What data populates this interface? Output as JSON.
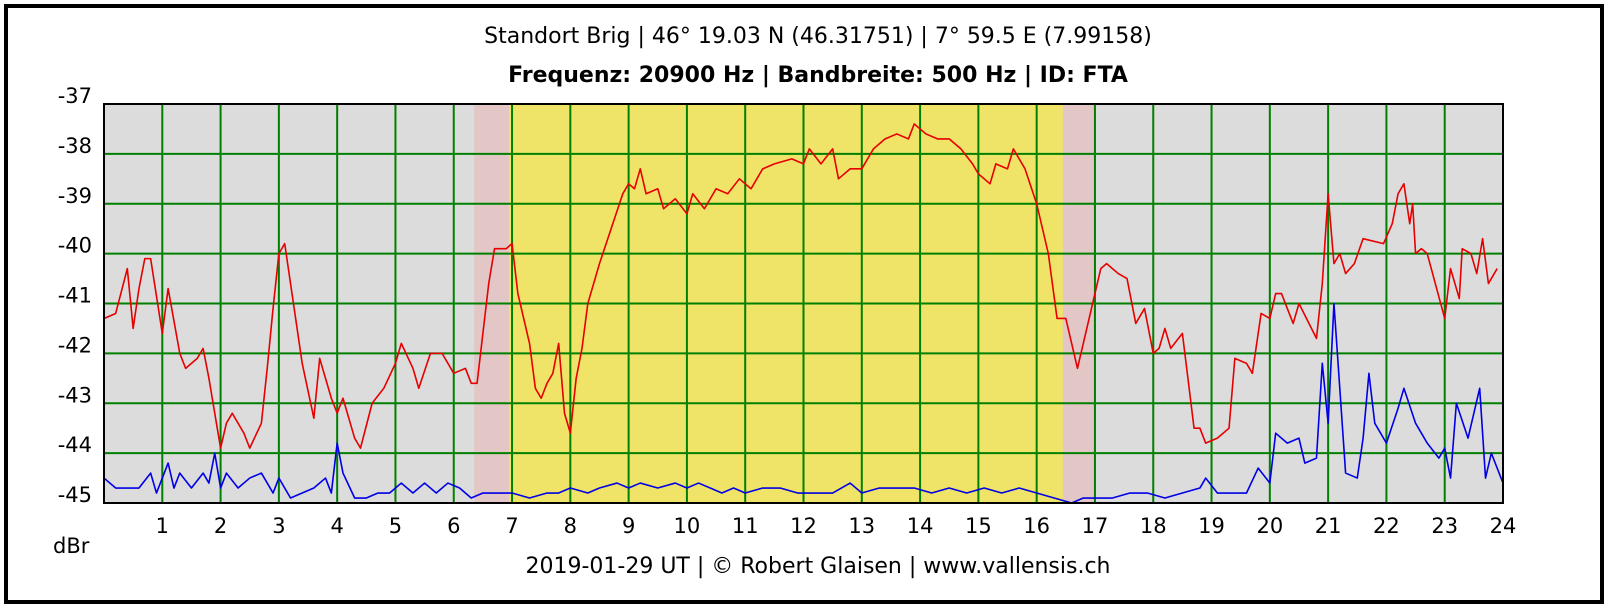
{
  "chart_data": {
    "type": "line",
    "title": "Standort Brig | 46° 19.03 N (46.31751) | 7° 59.5 E (7.99158)",
    "subtitle": "Frequenz: 20900 Hz | Bandbreite: 500 Hz | ID: FTA",
    "caption": "2019-01-29 UT | © Robert Glaisen | www.vallensis.ch",
    "y_label": "dBr",
    "xlim": [
      0,
      24
    ],
    "xticks": [
      1,
      2,
      3,
      4,
      5,
      6,
      7,
      8,
      9,
      10,
      11,
      12,
      13,
      14,
      15,
      16,
      17,
      18,
      19,
      20,
      21,
      22,
      23,
      24
    ],
    "ylim": [
      -45,
      -37
    ],
    "yticks": [
      -37,
      -38,
      -39,
      -40,
      -41,
      -42,
      -43,
      -44,
      -45
    ],
    "grid": true,
    "grid_color": "#008000",
    "background": "#dcdcdc",
    "bands": [
      {
        "from": 6.35,
        "to": 6.95,
        "color": "#e3c6c6"
      },
      {
        "from": 6.95,
        "to": 16.45,
        "color": "#f0e468"
      },
      {
        "from": 16.45,
        "to": 17.0,
        "color": "#e3c6c6"
      }
    ],
    "series": [
      {
        "color": "#e60000",
        "x": [
          0,
          0.2,
          0.4,
          0.5,
          0.6,
          0.7,
          0.8,
          1.0,
          1.1,
          1.3,
          1.4,
          1.6,
          1.7,
          1.8,
          2.0,
          2.1,
          2.2,
          2.4,
          2.5,
          2.7,
          2.8,
          2.9,
          3.0,
          3.1,
          3.2,
          3.4,
          3.6,
          3.7,
          3.9,
          4.0,
          4.1,
          4.3,
          4.4,
          4.6,
          4.8,
          5.0,
          5.1,
          5.3,
          5.4,
          5.6,
          5.8,
          6.0,
          6.2,
          6.3,
          6.4,
          6.5,
          6.6,
          6.7,
          6.9,
          7.0,
          7.1,
          7.3,
          7.4,
          7.5,
          7.6,
          7.7,
          7.8,
          7.9,
          8.0,
          8.1,
          8.2,
          8.3,
          8.5,
          8.7,
          8.9,
          9.0,
          9.1,
          9.2,
          9.3,
          9.5,
          9.6,
          9.8,
          10.0,
          10.1,
          10.3,
          10.5,
          10.7,
          10.9,
          11.1,
          11.3,
          11.5,
          11.8,
          12.0,
          12.1,
          12.3,
          12.5,
          12.6,
          12.8,
          13.0,
          13.2,
          13.4,
          13.6,
          13.8,
          13.9,
          14.1,
          14.3,
          14.5,
          14.7,
          14.9,
          15.0,
          15.2,
          15.3,
          15.5,
          15.6,
          15.8,
          16.0,
          16.2,
          16.35,
          16.5,
          16.7,
          16.9,
          17.1,
          17.2,
          17.4,
          17.55,
          17.7,
          17.85,
          18.0,
          18.1,
          18.2,
          18.3,
          18.5,
          18.7,
          18.8,
          18.9,
          19.1,
          19.3,
          19.4,
          19.6,
          19.7,
          19.85,
          20.0,
          20.1,
          20.2,
          20.4,
          20.5,
          20.8,
          20.9,
          21.0,
          21.1,
          21.2,
          21.3,
          21.45,
          21.6,
          21.95,
          22.1,
          22.2,
          22.3,
          22.4,
          22.45,
          22.5,
          22.6,
          22.7,
          23.0,
          23.1,
          23.25,
          23.3,
          23.45,
          23.55,
          23.65,
          23.75,
          23.9
        ],
        "values": [
          -41.3,
          -41.2,
          -40.3,
          -41.5,
          -40.7,
          -40.1,
          -40.1,
          -41.6,
          -40.7,
          -42.0,
          -42.3,
          -42.1,
          -41.9,
          -42.5,
          -43.9,
          -43.4,
          -43.2,
          -43.6,
          -43.9,
          -43.4,
          -42.3,
          -41.1,
          -40.0,
          -39.8,
          -40.6,
          -42.2,
          -43.3,
          -42.1,
          -42.9,
          -43.2,
          -42.9,
          -43.7,
          -43.9,
          -43.0,
          -42.7,
          -42.2,
          -41.8,
          -42.3,
          -42.7,
          -42.0,
          -42.0,
          -42.4,
          -42.3,
          -42.6,
          -42.6,
          -41.6,
          -40.6,
          -39.9,
          -39.9,
          -39.8,
          -40.8,
          -41.8,
          -42.7,
          -42.9,
          -42.6,
          -42.4,
          -41.8,
          -43.2,
          -43.6,
          -42.5,
          -41.9,
          -41.0,
          -40.2,
          -39.5,
          -38.8,
          -38.6,
          -38.7,
          -38.3,
          -38.8,
          -38.7,
          -39.1,
          -38.9,
          -39.2,
          -38.8,
          -39.1,
          -38.7,
          -38.8,
          -38.5,
          -38.7,
          -38.3,
          -38.2,
          -38.1,
          -38.2,
          -37.9,
          -38.2,
          -37.9,
          -38.5,
          -38.3,
          -38.3,
          -37.9,
          -37.7,
          -37.6,
          -37.7,
          -37.4,
          -37.6,
          -37.7,
          -37.7,
          -37.9,
          -38.2,
          -38.4,
          -38.6,
          -38.2,
          -38.3,
          -37.9,
          -38.3,
          -39.0,
          -40.0,
          -41.3,
          -41.3,
          -42.3,
          -41.3,
          -40.3,
          -40.2,
          -40.4,
          -40.5,
          -41.4,
          -41.1,
          -42.0,
          -41.9,
          -41.5,
          -41.9,
          -41.6,
          -43.5,
          -43.5,
          -43.8,
          -43.7,
          -43.5,
          -42.1,
          -42.2,
          -42.4,
          -41.2,
          -41.3,
          -40.8,
          -40.8,
          -41.4,
          -41.0,
          -41.7,
          -40.6,
          -38.8,
          -40.2,
          -40.0,
          -40.4,
          -40.2,
          -39.7,
          -39.8,
          -39.4,
          -38.8,
          -38.6,
          -39.4,
          -39.0,
          -40.0,
          -39.9,
          -40.0,
          -41.3,
          -40.3,
          -40.9,
          -39.9,
          -40.0,
          -40.4,
          -39.7,
          -40.6,
          -40.3
        ]
      },
      {
        "color": "#0000e6",
        "x": [
          0,
          0.2,
          0.4,
          0.6,
          0.8,
          0.9,
          1.0,
          1.1,
          1.2,
          1.3,
          1.5,
          1.7,
          1.8,
          1.9,
          2.0,
          2.1,
          2.3,
          2.5,
          2.7,
          2.9,
          3.0,
          3.2,
          3.4,
          3.6,
          3.8,
          3.9,
          4.0,
          4.1,
          4.3,
          4.5,
          4.7,
          4.9,
          5.1,
          5.3,
          5.5,
          5.7,
          5.9,
          6.1,
          6.3,
          6.5,
          6.8,
          7.0,
          7.3,
          7.6,
          7.8,
          8.0,
          8.3,
          8.5,
          8.8,
          9.0,
          9.2,
          9.5,
          9.8,
          10.0,
          10.2,
          10.4,
          10.6,
          10.8,
          11.0,
          11.3,
          11.6,
          11.9,
          12.2,
          12.5,
          12.8,
          13.0,
          13.3,
          13.6,
          13.9,
          14.2,
          14.5,
          14.8,
          15.1,
          15.4,
          15.7,
          16.0,
          16.3,
          16.6,
          16.8,
          17.0,
          17.3,
          17.6,
          17.9,
          18.2,
          18.5,
          18.8,
          18.9,
          19.1,
          19.4,
          19.6,
          19.8,
          20.0,
          20.1,
          20.3,
          20.5,
          20.6,
          20.8,
          20.9,
          21.0,
          21.1,
          21.3,
          21.5,
          21.6,
          21.7,
          21.8,
          22.0,
          22.2,
          22.3,
          22.5,
          22.7,
          22.9,
          23.0,
          23.1,
          23.2,
          23.4,
          23.6,
          23.7,
          23.8,
          24.0
        ],
        "values": [
          -44.5,
          -44.7,
          -44.7,
          -44.7,
          -44.4,
          -44.8,
          -44.5,
          -44.2,
          -44.7,
          -44.4,
          -44.7,
          -44.4,
          -44.6,
          -44.0,
          -44.7,
          -44.4,
          -44.7,
          -44.5,
          -44.4,
          -44.8,
          -44.5,
          -44.9,
          -44.8,
          -44.7,
          -44.5,
          -44.8,
          -43.8,
          -44.4,
          -44.9,
          -44.9,
          -44.8,
          -44.8,
          -44.6,
          -44.8,
          -44.6,
          -44.8,
          -44.6,
          -44.7,
          -44.9,
          -44.8,
          -44.8,
          -44.8,
          -44.9,
          -44.8,
          -44.8,
          -44.7,
          -44.8,
          -44.7,
          -44.6,
          -44.7,
          -44.6,
          -44.7,
          -44.6,
          -44.7,
          -44.6,
          -44.7,
          -44.8,
          -44.7,
          -44.8,
          -44.7,
          -44.7,
          -44.8,
          -44.8,
          -44.8,
          -44.6,
          -44.8,
          -44.7,
          -44.7,
          -44.7,
          -44.8,
          -44.7,
          -44.8,
          -44.7,
          -44.8,
          -44.7,
          -44.8,
          -44.9,
          -45.0,
          -44.9,
          -44.9,
          -44.9,
          -44.8,
          -44.8,
          -44.9,
          -44.8,
          -44.7,
          -44.5,
          -44.8,
          -44.8,
          -44.8,
          -44.3,
          -44.6,
          -43.6,
          -43.8,
          -43.7,
          -44.2,
          -44.1,
          -42.2,
          -43.4,
          -41.0,
          -44.4,
          -44.5,
          -43.7,
          -42.4,
          -43.4,
          -43.8,
          -43.1,
          -42.7,
          -43.4,
          -43.8,
          -44.1,
          -43.9,
          -44.5,
          -43.0,
          -43.7,
          -42.7,
          -44.5,
          -44.0,
          -44.6
        ]
      }
    ]
  }
}
